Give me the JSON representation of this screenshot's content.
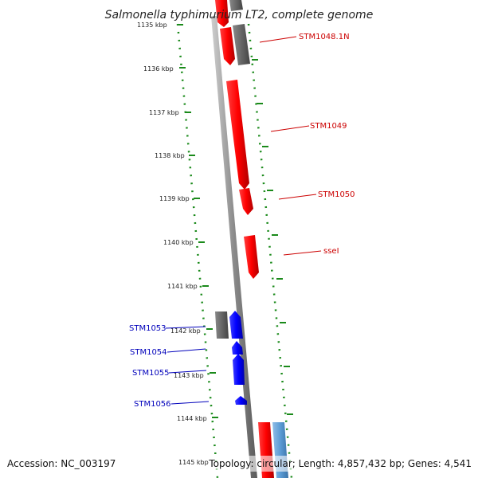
{
  "title": "Salmonella typhimurium LT2, complete genome",
  "footer": {
    "accession": "Accession: NC_003197",
    "summary": "Topology: circular; Length: 4,857,432 bp; Genes: 4,541"
  },
  "ticks": [
    {
      "label": "1135 kbp",
      "kbp": 1135
    },
    {
      "label": "1136 kbp",
      "kbp": 1136
    },
    {
      "label": "1137 kbp",
      "kbp": 1137
    },
    {
      "label": "1138 kbp",
      "kbp": 1138
    },
    {
      "label": "1139 kbp",
      "kbp": 1139
    },
    {
      "label": "1140 kbp",
      "kbp": 1140
    },
    {
      "label": "1141 kbp",
      "kbp": 1141
    },
    {
      "label": "1142 kbp",
      "kbp": 1142
    },
    {
      "label": "1143 kbp",
      "kbp": 1143
    },
    {
      "label": "1144 kbp",
      "kbp": 1144
    },
    {
      "label": "1145 kbp",
      "kbp": 1145
    }
  ],
  "forward_genes": [
    {
      "label": "STM1048.1N",
      "color": "#cc0000"
    },
    {
      "label": "STM1049",
      "color": "#cc0000"
    },
    {
      "label": "STM1050",
      "color": "#cc0000"
    },
    {
      "label": "sseI",
      "color": "#cc0000"
    }
  ],
  "reverse_genes": [
    {
      "label": "STM1053",
      "color": "#0000bb"
    },
    {
      "label": "STM1054",
      "color": "#0000bb"
    },
    {
      "label": "STM1055",
      "color": "#0000bb"
    },
    {
      "label": "STM1056",
      "color": "#0000bb"
    }
  ],
  "colors": {
    "backbone": "#888888",
    "forward": "#ff0000",
    "reverse": "#0000ff",
    "pseudo": "#666666",
    "rna": "#5b9bd5",
    "dots": "#1a8a1a"
  }
}
